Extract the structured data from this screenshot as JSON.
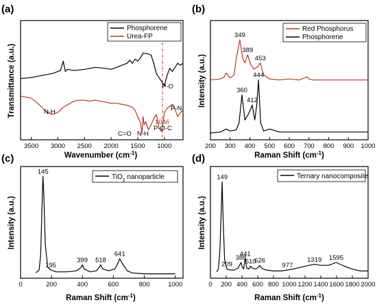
{
  "figure": {
    "panels": [
      {
        "id": "a",
        "label": "(a)",
        "xlabel": "Wavenumber (cm",
        "xlabel_sup": "-1",
        "xlabel_end": ")",
        "ylabel": "Transmittance (a.u.)",
        "legend": [
          "Phosphorene",
          "Urea-FP"
        ]
      },
      {
        "id": "b",
        "label": "(b)",
        "xlabel": "Raman Shift (cm",
        "xlabel_sup": "-1",
        "xlabel_end": ")",
        "ylabel": "Intensity (a.u.)",
        "legend": [
          "Red Phosphorus",
          "Phosphorene"
        ]
      },
      {
        "id": "c",
        "label": "(c)",
        "xlabel": "Raman Shift (cm",
        "xlabel_sup": "-1",
        "xlabel_end": ")",
        "ylabel": "Intensity (a.u.)",
        "legend_main": "TiO",
        "legend_sub": "2",
        "legend_end": " nanoparticle"
      },
      {
        "id": "d",
        "label": "(d)",
        "xlabel": "Raman Shift (cm",
        "xlabel_sup": "-1",
        "xlabel_end": ")",
        "ylabel": "Intensity (a.u.)",
        "legend": [
          "Ternary nanocomposite"
        ]
      }
    ]
  },
  "chart_data": [
    {
      "id": "a",
      "type": "line",
      "title": "",
      "xlabel": "Wavenumber (cm-1)",
      "ylabel": "Transmittance (a.u.)",
      "xlim": [
        3700,
        650
      ],
      "x_reversed": true,
      "xticks": [
        3500,
        3000,
        2500,
        2000,
        1500,
        1000
      ],
      "series": [
        {
          "name": "Phosphorene",
          "color": "#000000",
          "x": [
            3700,
            3500,
            3300,
            3100,
            2950,
            2900,
            2860,
            2820,
            2700,
            2500,
            2300,
            2100,
            2000,
            1900,
            1800,
            1700,
            1650,
            1600,
            1550,
            1500,
            1450,
            1400,
            1300,
            1250,
            1200,
            1150,
            1100,
            1050,
            1000,
            950,
            900,
            850,
            800,
            750,
            700,
            650
          ],
          "y": [
            0.55,
            0.56,
            0.58,
            0.6,
            0.63,
            0.72,
            0.62,
            0.64,
            0.63,
            0.64,
            0.66,
            0.65,
            0.64,
            0.66,
            0.68,
            0.7,
            0.73,
            0.7,
            0.74,
            0.72,
            0.75,
            0.8,
            0.79,
            0.78,
            0.7,
            0.6,
            0.56,
            0.52,
            0.48,
            0.58,
            0.65,
            0.62,
            0.66,
            0.7,
            0.68,
            0.7
          ]
        },
        {
          "name": "Urea-FP",
          "color": "#b03a1e",
          "x": [
            3700,
            3600,
            3500,
            3400,
            3300,
            3200,
            3100,
            3000,
            2900,
            2800,
            2700,
            2600,
            2500,
            2400,
            2300,
            2200,
            2100,
            2000,
            1900,
            1800,
            1700,
            1600,
            1550,
            1500,
            1450,
            1420,
            1400,
            1380,
            1350,
            1300,
            1250,
            1200,
            1150,
            1100,
            1046,
            1000,
            950,
            900,
            850,
            800,
            750,
            700,
            650
          ],
          "y": [
            0.38,
            0.37,
            0.36,
            0.32,
            0.27,
            0.22,
            0.2,
            0.22,
            0.27,
            0.3,
            0.33,
            0.34,
            0.34,
            0.33,
            0.34,
            0.33,
            0.32,
            0.31,
            0.31,
            0.3,
            0.29,
            0.27,
            0.24,
            0.18,
            0.12,
            0.02,
            0.18,
            0.1,
            0.13,
            0.05,
            0.1,
            0.16,
            0.2,
            0.07,
            0.03,
            0.22,
            0.26,
            0.28,
            0.3,
            0.25,
            0.18,
            0.22,
            0.24
          ]
        }
      ],
      "annotations": [
        "N-H",
        "C=O",
        "N-H",
        "P-O-C",
        "1046",
        "P-N",
        "P-O"
      ]
    },
    {
      "id": "b",
      "type": "line",
      "title": "",
      "xlabel": "Raman Shift (cm-1)",
      "ylabel": "Intensity (a.u.)",
      "xlim": [
        200,
        1000
      ],
      "xticks": [
        200,
        300,
        400,
        500,
        600,
        700,
        800,
        900,
        1000
      ],
      "series": [
        {
          "name": "Red Phosphorus",
          "color": "#b03a1e",
          "x": [
            200,
            250,
            270,
            280,
            300,
            320,
            330,
            349,
            365,
            375,
            389,
            405,
            420,
            440,
            453,
            470,
            500,
            550,
            600,
            650,
            690,
            700,
            720,
            800,
            850,
            900,
            950,
            1000
          ],
          "y": [
            0.55,
            0.56,
            0.58,
            0.62,
            0.57,
            0.6,
            0.75,
            0.95,
            0.76,
            0.72,
            0.8,
            0.7,
            0.66,
            0.68,
            0.72,
            0.6,
            0.56,
            0.55,
            0.56,
            0.55,
            0.58,
            0.56,
            0.55,
            0.55,
            0.55,
            0.55,
            0.55,
            0.55
          ]
        },
        {
          "name": "Phosphorene",
          "color": "#000000",
          "x": [
            200,
            250,
            280,
            300,
            330,
            345,
            360,
            375,
            390,
            400,
            412,
            425,
            435,
            444,
            455,
            470,
            500,
            550,
            600,
            700,
            800,
            900,
            1000
          ],
          "y": [
            0.02,
            0.03,
            0.06,
            0.04,
            0.05,
            0.12,
            0.4,
            0.15,
            0.2,
            0.24,
            0.3,
            0.15,
            0.3,
            0.55,
            0.12,
            0.04,
            0.06,
            0.03,
            0.03,
            0.03,
            0.03,
            0.03,
            0.03
          ]
        }
      ],
      "peak_labels": [
        "349",
        "389",
        "453",
        "360",
        "412",
        "444"
      ]
    },
    {
      "id": "c",
      "type": "line",
      "title": "",
      "xlabel": "Raman Shift (cm-1)",
      "ylabel": "Intensity (a.u.)",
      "xlim": [
        0,
        1050
      ],
      "xticks": [
        0,
        200,
        400,
        600,
        800,
        1000
      ],
      "series": [
        {
          "name": "TiO2 nanoparticle",
          "color": "#000000",
          "x": [
            100,
            120,
            130,
            140,
            145,
            150,
            160,
            175,
            195,
            230,
            300,
            360,
            390,
            399,
            410,
            450,
            490,
            510,
            518,
            530,
            570,
            610,
            630,
            641,
            655,
            690,
            720,
            800,
            900,
            1000
          ],
          "y": [
            0.02,
            0.05,
            0.2,
            0.75,
            0.98,
            0.8,
            0.3,
            0.08,
            0.05,
            0.03,
            0.03,
            0.04,
            0.07,
            0.1,
            0.06,
            0.03,
            0.04,
            0.08,
            0.1,
            0.06,
            0.04,
            0.06,
            0.12,
            0.16,
            0.12,
            0.04,
            0.02,
            0.01,
            0.01,
            0.01
          ]
        }
      ],
      "peak_labels": [
        "145",
        "195",
        "399",
        "518",
        "641"
      ]
    },
    {
      "id": "d",
      "type": "line",
      "title": "",
      "xlabel": "Raman Shift (cm-1)",
      "ylabel": "Intensity (a.u.)",
      "xlim": [
        0,
        2000
      ],
      "xticks": [
        0,
        200,
        400,
        600,
        800,
        1000,
        1200,
        1400,
        1600,
        1800,
        2000
      ],
      "series": [
        {
          "name": "Ternary nanocomposite",
          "color": "#000000",
          "x": [
            80,
            100,
            120,
            140,
            149,
            160,
            180,
            209,
            250,
            300,
            350,
            388,
            400,
            420,
            441,
            460,
            490,
            510,
            530,
            570,
            610,
            626,
            650,
            700,
            800,
            900,
            977,
            1050,
            1150,
            1250,
            1319,
            1400,
            1500,
            1595,
            1700,
            1800,
            1900,
            2000
          ],
          "y": [
            0.02,
            0.05,
            0.25,
            0.75,
            0.98,
            0.6,
            0.15,
            0.05,
            0.04,
            0.04,
            0.06,
            0.12,
            0.08,
            0.05,
            0.16,
            0.06,
            0.05,
            0.08,
            0.06,
            0.05,
            0.07,
            0.09,
            0.06,
            0.04,
            0.03,
            0.03,
            0.04,
            0.05,
            0.07,
            0.09,
            0.1,
            0.09,
            0.09,
            0.12,
            0.08,
            0.05,
            0.03,
            0.03
          ]
        }
      ],
      "peak_labels": [
        "149",
        "209",
        "388",
        "441",
        "510",
        "626",
        "977",
        "1319",
        "1595"
      ]
    }
  ]
}
